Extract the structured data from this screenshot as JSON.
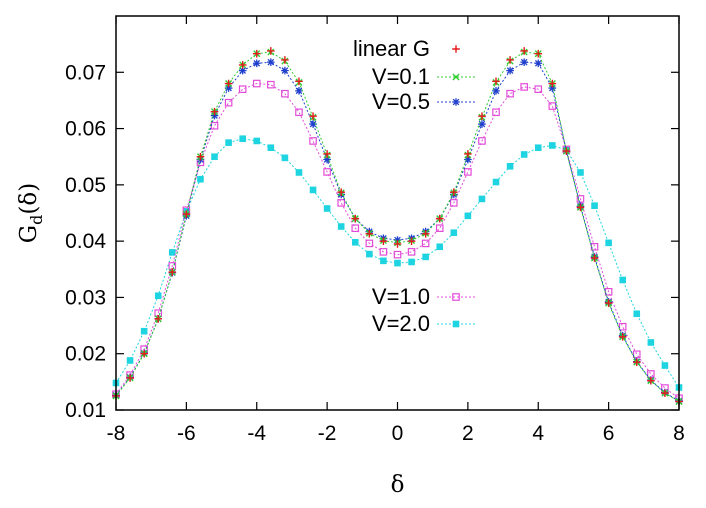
{
  "chart_data": {
    "type": "scatter",
    "title": "",
    "xlabel": "δ",
    "ylabel": "G_d(δ)",
    "ylabel_main": "G",
    "ylabel_sub": "d",
    "ylabel_arg": "(δ)",
    "xlim": [
      -8,
      8
    ],
    "ylim": [
      0.01,
      0.08
    ],
    "xticks": [
      -8,
      -6,
      -4,
      -2,
      0,
      2,
      4,
      6,
      8
    ],
    "xtick_labels": [
      "-8",
      "-6",
      "-4",
      "-2",
      "0",
      "2",
      "4",
      "6",
      "8"
    ],
    "yticks": [
      0.01,
      0.02,
      0.03,
      0.04,
      0.05,
      0.06,
      0.07
    ],
    "ytick_labels": [
      "0.01",
      "0.02",
      "0.03",
      "0.04",
      "0.05",
      "0.06",
      "0.07"
    ],
    "grid": false,
    "legend_placement": "top-center and lower-center",
    "x": [
      -8.0,
      -7.6,
      -7.2,
      -6.8,
      -6.4,
      -6.0,
      -5.6,
      -5.2,
      -4.8,
      -4.4,
      -4.0,
      -3.6,
      -3.2,
      -2.8,
      -2.4,
      -2.0,
      -1.6,
      -1.2,
      -0.8,
      -0.4,
      0.0,
      0.4,
      0.8,
      1.2,
      1.6,
      2.0,
      2.4,
      2.8,
      3.2,
      3.6,
      4.0,
      4.4,
      4.8,
      5.2,
      5.6,
      6.0,
      6.4,
      6.8,
      7.2,
      7.6,
      8.0
    ],
    "series": [
      {
        "name": "linear G",
        "color": "#e41a1c",
        "marker": "plus",
        "line": false,
        "values": [
          0.0125,
          0.0157,
          0.02,
          0.0262,
          0.0345,
          0.0448,
          0.055,
          0.063,
          0.068,
          0.0713,
          0.0733,
          0.0738,
          0.0722,
          0.0684,
          0.0622,
          0.0555,
          0.0487,
          0.044,
          0.0413,
          0.04,
          0.0395,
          0.04,
          0.0413,
          0.044,
          0.0487,
          0.0555,
          0.0622,
          0.0684,
          0.0722,
          0.0738,
          0.0733,
          0.068,
          0.056,
          0.046,
          0.037,
          0.029,
          0.023,
          0.0185,
          0.0152,
          0.013,
          0.0115
        ]
      },
      {
        "name": "V=0.1",
        "color": "#33cc33",
        "marker": "x",
        "line": true,
        "values": [
          0.0125,
          0.0157,
          0.02,
          0.0262,
          0.0345,
          0.0448,
          0.055,
          0.063,
          0.068,
          0.0713,
          0.0733,
          0.0736,
          0.072,
          0.0682,
          0.062,
          0.0553,
          0.0486,
          0.044,
          0.0414,
          0.0401,
          0.0397,
          0.0401,
          0.0414,
          0.044,
          0.0486,
          0.0553,
          0.062,
          0.0682,
          0.072,
          0.0736,
          0.0733,
          0.068,
          0.056,
          0.046,
          0.037,
          0.029,
          0.023,
          0.0185,
          0.0152,
          0.013,
          0.0115
        ]
      },
      {
        "name": "V=0.5",
        "color": "#1f3fcc",
        "marker": "star",
        "line": true,
        "values": [
          0.0126,
          0.0158,
          0.0201,
          0.0262,
          0.0344,
          0.0445,
          0.0545,
          0.0623,
          0.0672,
          0.0703,
          0.0716,
          0.0718,
          0.0703,
          0.0667,
          0.0608,
          0.0545,
          0.0483,
          0.044,
          0.0417,
          0.0405,
          0.0402,
          0.0405,
          0.0417,
          0.044,
          0.0483,
          0.0545,
          0.0608,
          0.0667,
          0.0703,
          0.0718,
          0.0716,
          0.0672,
          0.056,
          0.0462,
          0.0372,
          0.0292,
          0.0232,
          0.0186,
          0.0153,
          0.0131,
          0.0116
        ]
      },
      {
        "name": "V=1.0",
        "color": "#e24bd8",
        "marker": "square-open",
        "line": true,
        "values": [
          0.0128,
          0.0162,
          0.0208,
          0.0272,
          0.0356,
          0.0455,
          0.054,
          0.0605,
          0.0646,
          0.067,
          0.068,
          0.0678,
          0.0662,
          0.0629,
          0.0578,
          0.0523,
          0.0468,
          0.0423,
          0.0396,
          0.0381,
          0.0376,
          0.0381,
          0.0396,
          0.0423,
          0.0468,
          0.0523,
          0.0578,
          0.0629,
          0.0662,
          0.0674,
          0.067,
          0.064,
          0.0563,
          0.0475,
          0.039,
          0.031,
          0.0248,
          0.0199,
          0.0164,
          0.0139,
          0.0121
        ]
      },
      {
        "name": "V=2.0",
        "color": "#1ed4e0",
        "marker": "square-filled",
        "line": true,
        "values": [
          0.0148,
          0.0188,
          0.024,
          0.0303,
          0.038,
          0.0453,
          0.051,
          0.055,
          0.0575,
          0.0582,
          0.0578,
          0.0566,
          0.0548,
          0.0522,
          0.0491,
          0.0458,
          0.0426,
          0.0398,
          0.0377,
          0.0365,
          0.0361,
          0.0363,
          0.0372,
          0.039,
          0.0415,
          0.0445,
          0.0475,
          0.0505,
          0.0533,
          0.0554,
          0.0566,
          0.057,
          0.0562,
          0.0522,
          0.0463,
          0.0397,
          0.0331,
          0.0271,
          0.022,
          0.0179,
          0.014
        ]
      }
    ]
  }
}
